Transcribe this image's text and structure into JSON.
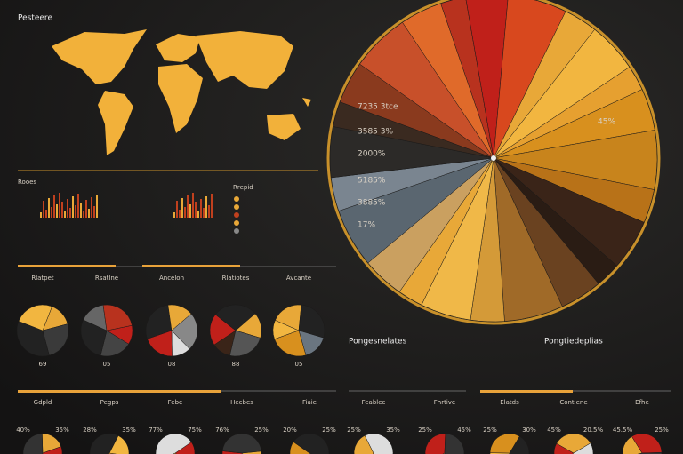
{
  "header": {
    "title": "Pesteere"
  },
  "big_pie": {
    "labels": [
      "7235 3tce",
      "3585 3%",
      "2000%",
      "5185%",
      "3885%",
      "17%",
      "45%"
    ]
  },
  "mini_charts": {
    "label": "Rooes",
    "legend_title": "Rrepid"
  },
  "small_pies": [
    {
      "title": "Rlatpet",
      "label": "69"
    },
    {
      "title": "Rsatlne",
      "label": "05"
    },
    {
      "title": "Ancelon",
      "label": "08"
    },
    {
      "title": "Rlatiotes",
      "label": "88"
    },
    {
      "title": "Avcante",
      "label": "05"
    }
  ],
  "panels": [
    {
      "title": "Pongesnelates"
    },
    {
      "title": "Pongtiedeplias"
    }
  ],
  "bottom_pies": [
    {
      "title": "Gdpld",
      "left": "40%",
      "right": "35%"
    },
    {
      "title": "Pegps",
      "left": "28%",
      "right": "35%"
    },
    {
      "title": "Febe",
      "left": "77%",
      "right": "75%"
    },
    {
      "title": "Hecbes",
      "left": "76%",
      "right": "25%"
    },
    {
      "title": "Fiaie",
      "left": "20%",
      "right": "25%"
    },
    {
      "title": "Feablec",
      "left": "25%",
      "right": "35%"
    },
    {
      "title": "Fhrtive",
      "left": "25%",
      "right": "45%"
    },
    {
      "title": "Elatds",
      "left": "25%",
      "right": "30%"
    },
    {
      "title": "Contiene",
      "left": "45%",
      "right": "20.5%"
    },
    {
      "title": "Efhe",
      "left": "45.5%",
      "right": "25%"
    }
  ]
}
